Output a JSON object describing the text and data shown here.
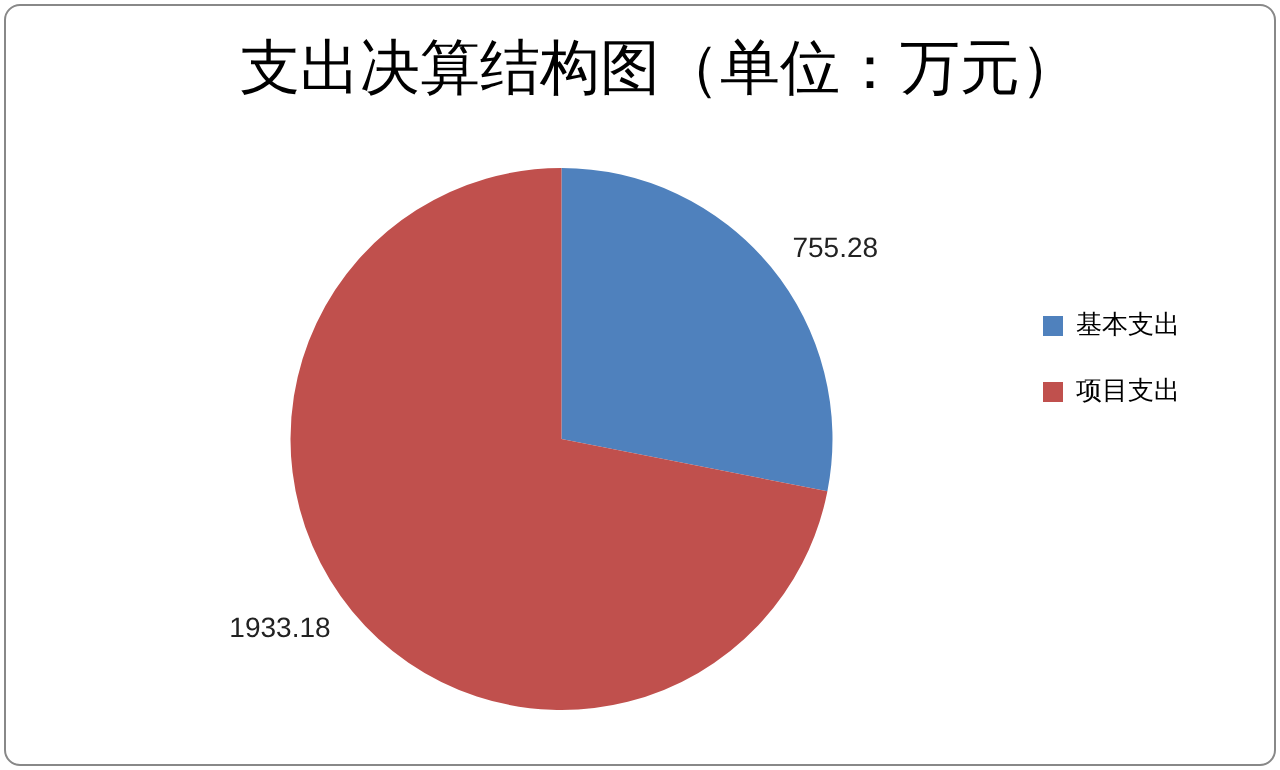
{
  "chart_data": {
    "type": "pie",
    "title": "支出决算结构图（单位：万元）",
    "categories": [
      "基本支出",
      "项目支出"
    ],
    "values": [
      755.28,
      1933.18
    ],
    "colors": [
      "#4f81bd",
      "#c0504d"
    ],
    "data_labels": true,
    "legend": "right"
  }
}
